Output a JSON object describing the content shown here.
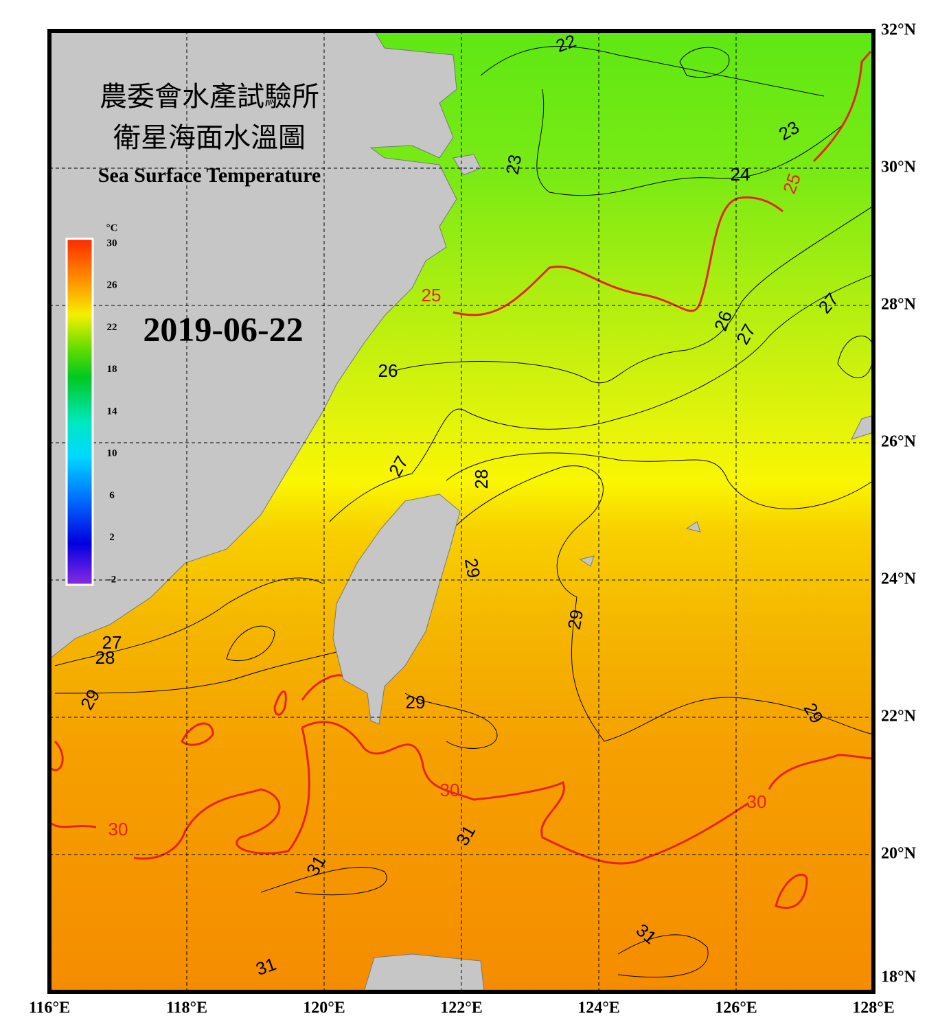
{
  "header": {
    "title_zh_1": "農委會水產試驗所",
    "title_zh_2": "衛星海面水溫圖",
    "title_en": "Sea Surface Temperature",
    "date": "2019-06-22"
  },
  "colorbar": {
    "unit": "°C",
    "ticks": [
      30,
      26,
      22,
      18,
      14,
      10,
      6,
      2,
      -2
    ]
  },
  "lon_ticks": [
    {
      "value": 116,
      "label": "116°E"
    },
    {
      "value": 118,
      "label": "118°E"
    },
    {
      "value": 120,
      "label": "120°E"
    },
    {
      "value": 122,
      "label": "122°E"
    },
    {
      "value": 124,
      "label": "124°E"
    },
    {
      "value": 126,
      "label": "126°E"
    },
    {
      "value": 128,
      "label": "128°E"
    }
  ],
  "lat_ticks": [
    {
      "value": 32,
      "label": "32°N"
    },
    {
      "value": 30,
      "label": "30°N"
    },
    {
      "value": 28,
      "label": "28°N"
    },
    {
      "value": 26,
      "label": "26°N"
    },
    {
      "value": 24,
      "label": "24°N"
    },
    {
      "value": 22,
      "label": "22°N"
    },
    {
      "value": 20,
      "label": "20°N"
    },
    {
      "value": 18,
      "label": "18°N"
    }
  ],
  "highlight_isotherms": [
    25,
    30
  ],
  "highlight_color": "#e8231c",
  "contour_labels": [
    22,
    23,
    23,
    24,
    25,
    25,
    26,
    26,
    27,
    27,
    27,
    28,
    29,
    29,
    29,
    29,
    27,
    28,
    29,
    30,
    30,
    30,
    31,
    31,
    31,
    31
  ]
}
